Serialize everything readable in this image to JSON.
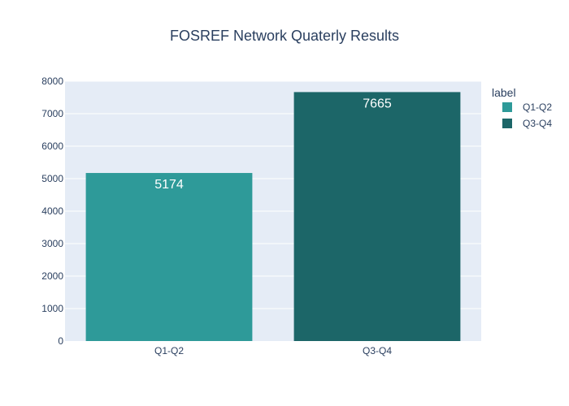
{
  "chart_data": {
    "type": "bar",
    "title": "FOSREF Network Quaterly Results",
    "categories": [
      "Q1-Q2",
      "Q3-Q4"
    ],
    "values": [
      5174,
      7665
    ],
    "data_labels": [
      "5174",
      "7665"
    ],
    "colors": [
      "#2e9a99",
      "#1c6668"
    ],
    "xlabel": "",
    "ylabel": "",
    "ylim": [
      0,
      8000
    ],
    "y_ticks": [
      0,
      1000,
      2000,
      3000,
      4000,
      5000,
      6000,
      7000,
      8000
    ],
    "y_tick_labels": [
      "0",
      "1000",
      "2000",
      "3000",
      "4000",
      "5000",
      "6000",
      "7000",
      "8000"
    ],
    "grid": true,
    "legend": {
      "title": "label",
      "placement": "right",
      "entries": [
        {
          "name": "Q1-Q2",
          "color": "#2e9a99"
        },
        {
          "name": "Q3-Q4",
          "color": "#1c6668"
        }
      ]
    },
    "plot_background": "#e5ecf6",
    "grid_color": "#ffffff",
    "text_color": "#2a3f5f"
  }
}
